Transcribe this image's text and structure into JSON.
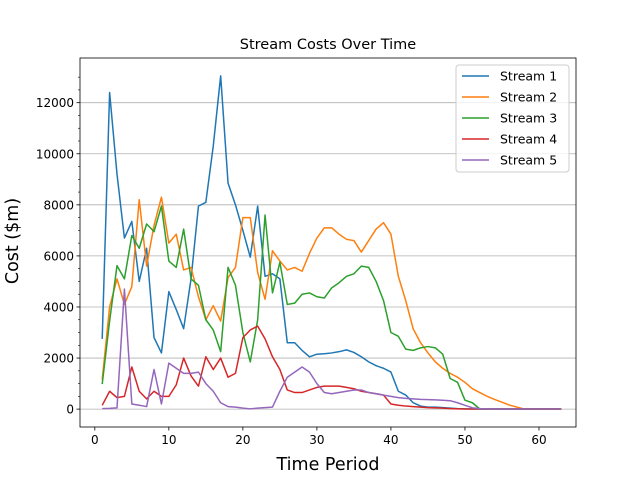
{
  "chart_data": {
    "type": "line",
    "title": "Stream Costs Over Time",
    "xlabel": "Time Period",
    "ylabel": "Cost ($m)",
    "xlim": [
      -2,
      65
    ],
    "ylim": [
      -700,
      13750
    ],
    "x_ticks": [
      0,
      10,
      20,
      30,
      40,
      50,
      60
    ],
    "y_ticks": [
      0,
      2000,
      4000,
      6000,
      8000,
      10000,
      12000
    ],
    "grid": "y-major",
    "legend_position": "top-right",
    "x": [
      1,
      2,
      3,
      4,
      5,
      6,
      7,
      8,
      9,
      10,
      11,
      12,
      13,
      14,
      15,
      16,
      17,
      18,
      19,
      20,
      21,
      22,
      23,
      24,
      25,
      26,
      27,
      28,
      29,
      30,
      31,
      32,
      33,
      34,
      35,
      36,
      37,
      38,
      39,
      40,
      41,
      42,
      43,
      44,
      45,
      46,
      47,
      48,
      49,
      50,
      51,
      52,
      53,
      54,
      55,
      56,
      57,
      58,
      59,
      60,
      61,
      62,
      63
    ],
    "series": [
      {
        "name": "Stream 1",
        "color": "#1f77b4",
        "values": [
          2750,
          12400,
          9200,
          6700,
          7350,
          5000,
          6300,
          2800,
          2200,
          4600,
          3900,
          3150,
          5100,
          7950,
          8100,
          10300,
          13050,
          8850,
          8000,
          7000,
          5950,
          7950,
          5200,
          5300,
          5100,
          2600,
          2600,
          2300,
          2050,
          2150,
          2170,
          2200,
          2250,
          2320,
          2220,
          2050,
          1850,
          1700,
          1600,
          1450,
          700,
          550,
          250,
          120,
          80,
          80,
          60,
          40,
          20,
          10,
          5,
          5,
          5,
          5,
          5,
          5,
          5,
          5,
          5,
          5,
          5,
          5,
          5
        ]
      },
      {
        "name": "Stream 2",
        "color": "#ff7f0e",
        "values": [
          1150,
          4000,
          5100,
          4100,
          4800,
          8200,
          5600,
          7200,
          8300,
          6500,
          6850,
          5450,
          5550,
          4400,
          3500,
          4050,
          3450,
          5150,
          5550,
          7500,
          7500,
          5350,
          4300,
          6200,
          5800,
          5450,
          5550,
          5400,
          6100,
          6700,
          7100,
          7100,
          6850,
          6650,
          6600,
          6150,
          6600,
          7050,
          7300,
          6850,
          5200,
          4250,
          3150,
          2600,
          2200,
          1850,
          1600,
          1400,
          1250,
          1050,
          800,
          650,
          500,
          380,
          270,
          160,
          80,
          5,
          5,
          5,
          5,
          5,
          5
        ]
      },
      {
        "name": "Stream 3",
        "color": "#2ca02c",
        "values": [
          980,
          3450,
          5620,
          5100,
          6800,
          6300,
          7250,
          6950,
          7950,
          5800,
          5550,
          7050,
          5100,
          4850,
          3500,
          3100,
          2250,
          5550,
          4850,
          3000,
          1850,
          3500,
          7600,
          4550,
          5750,
          4100,
          4150,
          4500,
          4550,
          4400,
          4350,
          4750,
          4950,
          5200,
          5300,
          5600,
          5550,
          5000,
          4250,
          3000,
          2850,
          2350,
          2300,
          2400,
          2450,
          2400,
          2150,
          1200,
          1050,
          350,
          250,
          5,
          5,
          5,
          5,
          5,
          5,
          5,
          5,
          5,
          5,
          5,
          5
        ]
      },
      {
        "name": "Stream 4",
        "color": "#d62728",
        "values": [
          150,
          700,
          450,
          500,
          1650,
          700,
          400,
          700,
          500,
          500,
          950,
          2000,
          1300,
          900,
          2050,
          1550,
          2000,
          1250,
          1400,
          2800,
          3100,
          3250,
          2750,
          2050,
          1550,
          750,
          650,
          650,
          750,
          850,
          900,
          900,
          900,
          850,
          800,
          700,
          650,
          600,
          550,
          200,
          150,
          120,
          100,
          80,
          60,
          50,
          40,
          20,
          10,
          5,
          5,
          5,
          5,
          5,
          5,
          5,
          5,
          5,
          5,
          5,
          5,
          5,
          5
        ]
      },
      {
        "name": "Stream 5",
        "color": "#9467bd",
        "values": [
          20,
          30,
          50,
          4700,
          200,
          150,
          100,
          1550,
          200,
          1800,
          1600,
          1400,
          1400,
          1450,
          1000,
          700,
          250,
          100,
          80,
          40,
          10,
          40,
          60,
          80,
          700,
          1250,
          1450,
          1650,
          1450,
          1000,
          650,
          600,
          650,
          700,
          750,
          750,
          650,
          600,
          550,
          500,
          450,
          420,
          400,
          380,
          370,
          360,
          350,
          330,
          250,
          150,
          50,
          20,
          10,
          5,
          5,
          5,
          5,
          5,
          5,
          5,
          5,
          5,
          5
        ]
      }
    ]
  }
}
